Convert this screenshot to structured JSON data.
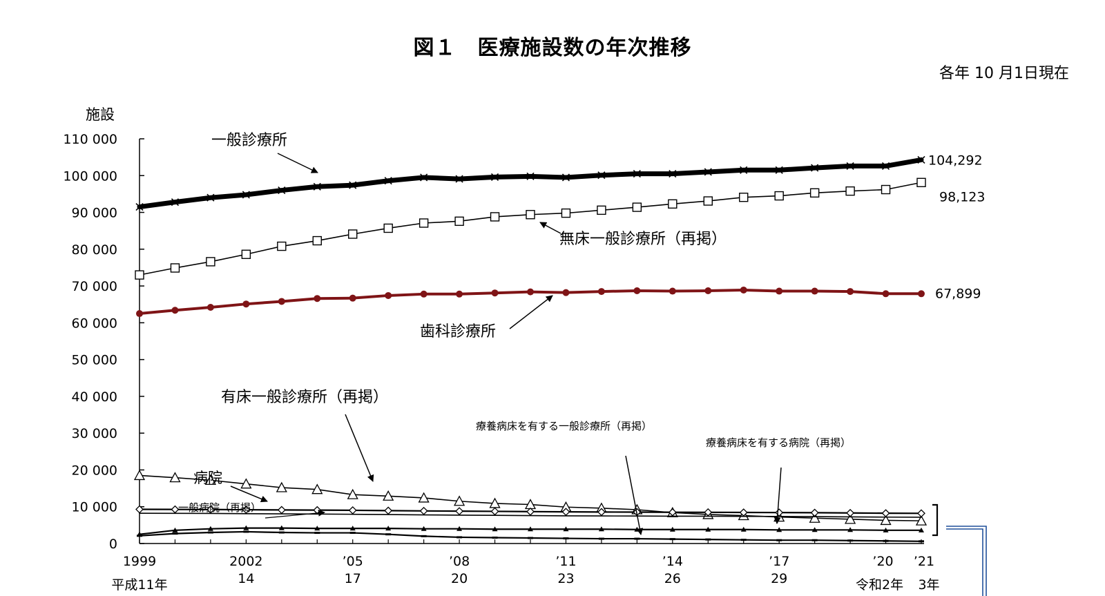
{
  "page": {
    "title": "図１　医療施設数の年次推移",
    "as_of": "各年 10 月1日現在",
    "y_unit": "施設"
  },
  "chart_data": {
    "type": "line",
    "title": "図１　医療施設数の年次推移",
    "ylabel": "施設",
    "ylim": [
      0,
      110000
    ],
    "y_ticks": [
      0,
      10000,
      20000,
      30000,
      40000,
      50000,
      60000,
      70000,
      80000,
      90000,
      100000,
      110000
    ],
    "y_tick_labels": [
      "0",
      "10 000",
      "20 000",
      "30 000",
      "40 000",
      "50 000",
      "60 000",
      "70 000",
      "80 000",
      "90 000",
      "100 000",
      "110 000"
    ],
    "x": [
      1999,
      2000,
      2001,
      2002,
      2003,
      2004,
      2005,
      2006,
      2007,
      2008,
      2009,
      2010,
      2011,
      2012,
      2013,
      2014,
      2015,
      2016,
      2017,
      2018,
      2019,
      2020,
      2021
    ],
    "x_tick_labels": [
      {
        "x": 1999,
        "top": "1999",
        "bottom": "平成11年"
      },
      {
        "x": 2002,
        "top": "2002",
        "bottom": "14"
      },
      {
        "x": 2005,
        "top": "’05",
        "bottom": "17"
      },
      {
        "x": 2008,
        "top": "’08",
        "bottom": "20"
      },
      {
        "x": 2011,
        "top": "’11",
        "bottom": "23"
      },
      {
        "x": 2014,
        "top": "’14",
        "bottom": "26"
      },
      {
        "x": 2017,
        "top": "’17",
        "bottom": "29"
      },
      {
        "x": 2020,
        "top": "’20",
        "bottom": "令和2年"
      },
      {
        "x": 2021,
        "top": "’21",
        "bottom": "3年"
      }
    ],
    "grid": false,
    "series": [
      {
        "name": "一般診療所",
        "marker": "x",
        "color": "#000000",
        "width": 7,
        "end_label": "104,292",
        "values": [
          91500,
          92800,
          94000,
          94800,
          96000,
          97000,
          97400,
          98600,
          99500,
          99100,
          99600,
          99800,
          99500,
          100100,
          100500,
          100500,
          101000,
          101500,
          101500,
          102100,
          102600,
          102600,
          104292
        ]
      },
      {
        "name": "無床一般診療所（再掲）",
        "marker": "square",
        "color": "#000000",
        "width": 1.6,
        "end_label": "98,123",
        "values": [
          73000,
          74900,
          76600,
          78600,
          80800,
          82300,
          84100,
          85700,
          87100,
          87600,
          88800,
          89400,
          89800,
          90600,
          91400,
          92300,
          93100,
          94100,
          94500,
          95300,
          95800,
          96200,
          98123
        ]
      },
      {
        "name": "歯科診療所",
        "marker": "circle",
        "color": "#7f1416",
        "width": 4,
        "end_label": "67,899",
        "values": [
          62500,
          63400,
          64200,
          65100,
          65800,
          66600,
          66700,
          67400,
          67800,
          67800,
          68100,
          68400,
          68200,
          68500,
          68700,
          68600,
          68700,
          68900,
          68600,
          68600,
          68500,
          67900,
          67899
        ]
      },
      {
        "name": "有床一般診療所（再掲）",
        "marker": "triangle-open",
        "color": "#000000",
        "width": 1.6,
        "values": [
          18500,
          17900,
          17200,
          16200,
          15200,
          14700,
          13300,
          12900,
          12400,
          11500,
          10900,
          10600,
          9900,
          9600,
          9200,
          8400,
          7900,
          7600,
          7200,
          6900,
          6600,
          6300,
          6169
        ]
      },
      {
        "name": "病院",
        "marker": "diamond",
        "color": "#000000",
        "width": 2.2,
        "values": [
          9286,
          9266,
          9239,
          9187,
          9122,
          9077,
          9026,
          8943,
          8862,
          8794,
          8739,
          8670,
          8605,
          8565,
          8540,
          8493,
          8480,
          8442,
          8412,
          8372,
          8300,
          8238,
          8205
        ]
      },
      {
        "name": "一般病院（再掲）",
        "marker": "none",
        "color": "#000000",
        "width": 1.6,
        "values": [
          8222,
          8198,
          8173,
          8116,
          8051,
          8005,
          7952,
          7866,
          7785,
          7714,
          7655,
          7587,
          7528,
          7493,
          7474,
          7426,
          7416,
          7380,
          7353,
          7314,
          7246,
          7179,
          7152
        ]
      },
      {
        "name": "療養病床を有する病院（再掲）",
        "marker": "triangle-solid",
        "color": "#000000",
        "width": 2.2,
        "values": [
          2500,
          3600,
          4000,
          4200,
          4200,
          4100,
          4100,
          4100,
          4000,
          4000,
          3900,
          3900,
          3900,
          3900,
          3800,
          3800,
          3800,
          3800,
          3700,
          3700,
          3700,
          3600,
          3600
        ]
      },
      {
        "name": "療養病床を有する一般診療所（再掲）",
        "marker": "dash",
        "color": "#000000",
        "width": 2.2,
        "values": [
          2100,
          2700,
          3000,
          3200,
          3000,
          2900,
          2900,
          2500,
          2000,
          1700,
          1600,
          1500,
          1400,
          1300,
          1300,
          1200,
          1100,
          1000,
          900,
          900,
          800,
          700,
          600
        ]
      }
    ],
    "annotations": [
      {
        "text": "一般診療所",
        "series": "一般診療所"
      },
      {
        "text": "無床一般診療所（再掲）",
        "series": "無床一般診療所（再掲）"
      },
      {
        "text": "歯科診療所",
        "series": "歯科診療所"
      },
      {
        "text": "有床一般診療所（再掲）",
        "series": "有床一般診療所（再掲）"
      },
      {
        "text": "病院",
        "series": "病院"
      },
      {
        "text": "一般病院（再掲）",
        "series": "一般病院（再掲）"
      },
      {
        "text": "療養病床を有する一般診療所（再掲）",
        "series": "療養病床を有する一般診療所（再掲）"
      },
      {
        "text": "療養病床を有する病院（再掲）",
        "series": "療養病床を有する病院（再掲）"
      }
    ]
  }
}
